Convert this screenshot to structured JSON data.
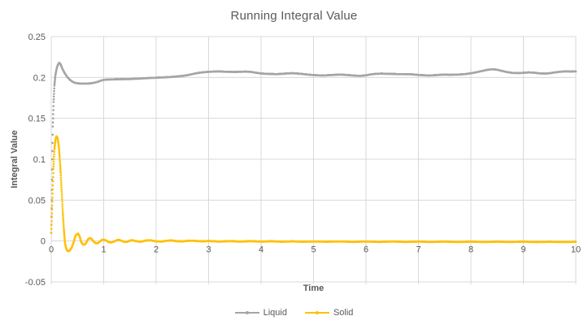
{
  "chart_data": {
    "type": "line",
    "title": "Running Integral Value",
    "xlabel": "Time",
    "ylabel": "Integral Value",
    "xlim": [
      0,
      10
    ],
    "ylim": [
      -0.05,
      0.25
    ],
    "grid": true,
    "legend_position": "bottom",
    "colors": {
      "grid": "#D9D9D9",
      "tick_text": "#595959",
      "title_text": "#595959",
      "background": "#FFFFFF"
    },
    "x_ticks": [
      {
        "v": 0,
        "label": "0"
      },
      {
        "v": 1,
        "label": "1"
      },
      {
        "v": 2,
        "label": "2"
      },
      {
        "v": 3,
        "label": "3"
      },
      {
        "v": 4,
        "label": "4"
      },
      {
        "v": 5,
        "label": "5"
      },
      {
        "v": 6,
        "label": "6"
      },
      {
        "v": 7,
        "label": "7"
      },
      {
        "v": 8,
        "label": "8"
      },
      {
        "v": 9,
        "label": "9"
      },
      {
        "v": 10,
        "label": "10"
      }
    ],
    "y_ticks": [
      {
        "v": -0.05,
        "label": "-0.05"
      },
      {
        "v": 0,
        "label": "0"
      },
      {
        "v": 0.05,
        "label": "0.05"
      },
      {
        "v": 0.1,
        "label": "0.1"
      },
      {
        "v": 0.15,
        "label": "0.15"
      },
      {
        "v": 0.2,
        "label": "0.2"
      },
      {
        "v": 0.25,
        "label": "0.25"
      }
    ],
    "series": [
      {
        "name": "Liquid",
        "color": "#A5A5A5",
        "points": [
          [
            0,
            0.01
          ],
          [
            0.01,
            0.05
          ],
          [
            0.02,
            0.1
          ],
          [
            0.03,
            0.14
          ],
          [
            0.045,
            0.17
          ],
          [
            0.06,
            0.19
          ],
          [
            0.08,
            0.203
          ],
          [
            0.1,
            0.21
          ],
          [
            0.12,
            0.2145
          ],
          [
            0.15,
            0.218
          ],
          [
            0.18,
            0.216
          ],
          [
            0.21,
            0.211
          ],
          [
            0.25,
            0.206
          ],
          [
            0.3,
            0.201
          ],
          [
            0.35,
            0.1975
          ],
          [
            0.4,
            0.195
          ],
          [
            0.45,
            0.1935
          ],
          [
            0.5,
            0.1928
          ],
          [
            0.55,
            0.1925
          ],
          [
            0.6,
            0.1924
          ],
          [
            0.65,
            0.1924
          ],
          [
            0.7,
            0.1925
          ],
          [
            0.75,
            0.1928
          ],
          [
            0.8,
            0.1933
          ],
          [
            0.85,
            0.194
          ],
          [
            0.9,
            0.195
          ],
          [
            0.95,
            0.1962
          ],
          [
            1.0,
            0.197
          ],
          [
            1.1,
            0.1974
          ],
          [
            1.2,
            0.1976
          ],
          [
            1.3,
            0.1977
          ],
          [
            1.4,
            0.1978
          ],
          [
            1.5,
            0.198
          ],
          [
            1.6,
            0.1983
          ],
          [
            1.7,
            0.1986
          ],
          [
            1.8,
            0.199
          ],
          [
            1.9,
            0.1993
          ],
          [
            2.0,
            0.1996
          ],
          [
            2.1,
            0.1999
          ],
          [
            2.2,
            0.2002
          ],
          [
            2.3,
            0.2006
          ],
          [
            2.4,
            0.2012
          ],
          [
            2.5,
            0.2018
          ],
          [
            2.6,
            0.2028
          ],
          [
            2.7,
            0.2042
          ],
          [
            2.8,
            0.2055
          ],
          [
            2.9,
            0.2063
          ],
          [
            3.0,
            0.2068
          ],
          [
            3.1,
            0.2071
          ],
          [
            3.2,
            0.2072
          ],
          [
            3.3,
            0.207
          ],
          [
            3.4,
            0.2067
          ],
          [
            3.5,
            0.2066
          ],
          [
            3.6,
            0.2068
          ],
          [
            3.7,
            0.2071
          ],
          [
            3.8,
            0.2068
          ],
          [
            3.9,
            0.2058
          ],
          [
            4.0,
            0.2048
          ],
          [
            4.1,
            0.2043
          ],
          [
            4.2,
            0.2041
          ],
          [
            4.3,
            0.204
          ],
          [
            4.4,
            0.2043
          ],
          [
            4.5,
            0.2049
          ],
          [
            4.6,
            0.2051
          ],
          [
            4.7,
            0.2047
          ],
          [
            4.8,
            0.2041
          ],
          [
            4.9,
            0.2034
          ],
          [
            5.0,
            0.2028
          ],
          [
            5.1,
            0.2025
          ],
          [
            5.2,
            0.2024
          ],
          [
            5.3,
            0.2027
          ],
          [
            5.4,
            0.2031
          ],
          [
            5.5,
            0.2034
          ],
          [
            5.6,
            0.2031
          ],
          [
            5.7,
            0.2026
          ],
          [
            5.8,
            0.2021
          ],
          [
            5.9,
            0.2019
          ],
          [
            6.0,
            0.2026
          ],
          [
            6.1,
            0.2038
          ],
          [
            6.2,
            0.2044
          ],
          [
            6.3,
            0.2046
          ],
          [
            6.4,
            0.2044
          ],
          [
            6.5,
            0.2042
          ],
          [
            6.6,
            0.204
          ],
          [
            6.7,
            0.204
          ],
          [
            6.8,
            0.2039
          ],
          [
            6.9,
            0.2036
          ],
          [
            7.0,
            0.203
          ],
          [
            7.1,
            0.2026
          ],
          [
            7.2,
            0.2024
          ],
          [
            7.3,
            0.2026
          ],
          [
            7.4,
            0.2031
          ],
          [
            7.5,
            0.2033
          ],
          [
            7.6,
            0.2031
          ],
          [
            7.7,
            0.2033
          ],
          [
            7.8,
            0.2036
          ],
          [
            7.9,
            0.2041
          ],
          [
            8.0,
            0.2051
          ],
          [
            8.1,
            0.2063
          ],
          [
            8.2,
            0.2077
          ],
          [
            8.3,
            0.2091
          ],
          [
            8.4,
            0.21
          ],
          [
            8.5,
            0.2094
          ],
          [
            8.6,
            0.2079
          ],
          [
            8.7,
            0.2064
          ],
          [
            8.8,
            0.2055
          ],
          [
            8.9,
            0.2052
          ],
          [
            9.0,
            0.2056
          ],
          [
            9.1,
            0.2061
          ],
          [
            9.2,
            0.2058
          ],
          [
            9.3,
            0.205
          ],
          [
            9.4,
            0.2046
          ],
          [
            9.5,
            0.2051
          ],
          [
            9.6,
            0.2061
          ],
          [
            9.7,
            0.2069
          ],
          [
            9.8,
            0.2073
          ],
          [
            9.9,
            0.2071
          ],
          [
            10.0,
            0.2073
          ]
        ]
      },
      {
        "name": "Solid",
        "color": "#FFC000",
        "points": [
          [
            0,
            0.01
          ],
          [
            0.02,
            0.048
          ],
          [
            0.04,
            0.088
          ],
          [
            0.06,
            0.112
          ],
          [
            0.08,
            0.124
          ],
          [
            0.1,
            0.128
          ],
          [
            0.12,
            0.126
          ],
          [
            0.14,
            0.118
          ],
          [
            0.16,
            0.103
          ],
          [
            0.18,
            0.083
          ],
          [
            0.2,
            0.06
          ],
          [
            0.22,
            0.036
          ],
          [
            0.24,
            0.015
          ],
          [
            0.26,
            -0.001
          ],
          [
            0.28,
            -0.008
          ],
          [
            0.3,
            -0.0115
          ],
          [
            0.33,
            -0.0125
          ],
          [
            0.36,
            -0.011
          ],
          [
            0.39,
            -0.008
          ],
          [
            0.42,
            -0.003
          ],
          [
            0.45,
            0.004
          ],
          [
            0.48,
            0.008
          ],
          [
            0.51,
            0.009
          ],
          [
            0.54,
            0.006
          ],
          [
            0.57,
            -0.001
          ],
          [
            0.6,
            -0.004
          ],
          [
            0.63,
            -0.0045
          ],
          [
            0.66,
            -0.003
          ],
          [
            0.7,
            0.002
          ],
          [
            0.73,
            0.0035
          ],
          [
            0.76,
            0.003
          ],
          [
            0.8,
            0.0
          ],
          [
            0.84,
            -0.0025
          ],
          [
            0.88,
            -0.003
          ],
          [
            0.92,
            -0.001
          ],
          [
            0.96,
            0.0012
          ],
          [
            1.0,
            0.0018
          ],
          [
            1.05,
            0.0005
          ],
          [
            1.1,
            -0.0015
          ],
          [
            1.15,
            -0.0018
          ],
          [
            1.2,
            -0.0005
          ],
          [
            1.25,
            0.001
          ],
          [
            1.3,
            0.0012
          ],
          [
            1.35,
            0.0
          ],
          [
            1.4,
            -0.0012
          ],
          [
            1.45,
            -0.001
          ],
          [
            1.5,
            0.0005
          ],
          [
            1.55,
            0.001
          ],
          [
            1.6,
            0.0
          ],
          [
            1.7,
            -0.001
          ],
          [
            1.8,
            0.0005
          ],
          [
            1.9,
            0.0008
          ],
          [
            2.0,
            -0.0005
          ],
          [
            2.1,
            -0.0008
          ],
          [
            2.2,
            0.0003
          ],
          [
            2.3,
            0.0006
          ],
          [
            2.4,
            -0.0004
          ],
          [
            2.5,
            -0.0006
          ],
          [
            2.6,
            0.0002
          ],
          [
            2.7,
            0.0004
          ],
          [
            2.8,
            -0.0003
          ],
          [
            2.9,
            -0.0005
          ],
          [
            3.0,
            0.0
          ],
          [
            3.2,
            -0.0008
          ],
          [
            3.4,
            -0.0002
          ],
          [
            3.6,
            -0.0008
          ],
          [
            3.8,
            -0.0003
          ],
          [
            4.0,
            -0.0008
          ],
          [
            4.2,
            -0.0004
          ],
          [
            4.4,
            -0.001
          ],
          [
            4.6,
            -0.0005
          ],
          [
            4.8,
            -0.001
          ],
          [
            5.0,
            -0.0006
          ],
          [
            5.25,
            -0.001
          ],
          [
            5.5,
            -0.0006
          ],
          [
            5.75,
            -0.0012
          ],
          [
            6.0,
            -0.0007
          ],
          [
            6.25,
            -0.0012
          ],
          [
            6.5,
            -0.0007
          ],
          [
            6.75,
            -0.0012
          ],
          [
            7.0,
            -0.0008
          ],
          [
            7.25,
            -0.0013
          ],
          [
            7.5,
            -0.0008
          ],
          [
            7.75,
            -0.0013
          ],
          [
            8.0,
            -0.0009
          ],
          [
            8.25,
            -0.0013
          ],
          [
            8.5,
            -0.0009
          ],
          [
            8.75,
            -0.0013
          ],
          [
            9.0,
            -0.0009
          ],
          [
            9.25,
            -0.0014
          ],
          [
            9.5,
            -0.001
          ],
          [
            9.75,
            -0.0014
          ],
          [
            10.0,
            -0.001
          ]
        ]
      }
    ]
  }
}
